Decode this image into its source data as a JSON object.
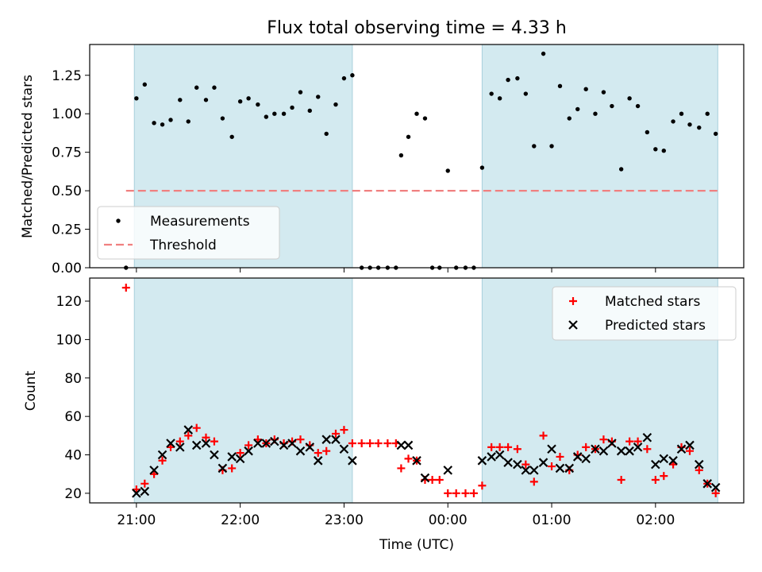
{
  "chart_data": {
    "title": "Flux total observing time = 4.33 h",
    "xlabel": "Time (UTC)",
    "x_ticks": [
      "21:00",
      "22:00",
      "23:00",
      "00:00",
      "01:00",
      "02:00"
    ],
    "x_range_hours": [
      20.55,
      26.85
    ],
    "shaded_spans_hours": [
      [
        20.98,
        23.08
      ],
      [
        24.33,
        26.6
      ]
    ],
    "shade_color": "#d3eaf0",
    "panels": [
      {
        "type": "scatter",
        "ylabel": "Matched/Predicted stars",
        "ylim": [
          0,
          1.45
        ],
        "yticks": [
          "0.00",
          "0.25",
          "0.50",
          "0.75",
          "1.00",
          "1.25"
        ],
        "legend_position": "lower-left",
        "series": [
          {
            "name": "Measurements",
            "marker": "dot",
            "color": "#000000",
            "points": [
              [
                20.9,
                0.0
              ],
              [
                21.0,
                1.1
              ],
              [
                21.08,
                1.19
              ],
              [
                21.17,
                0.94
              ],
              [
                21.25,
                0.93
              ],
              [
                21.33,
                0.96
              ],
              [
                21.42,
                1.09
              ],
              [
                21.5,
                0.95
              ],
              [
                21.58,
                1.17
              ],
              [
                21.67,
                1.09
              ],
              [
                21.75,
                1.17
              ],
              [
                21.83,
                0.97
              ],
              [
                21.92,
                0.85
              ],
              [
                22.0,
                1.08
              ],
              [
                22.08,
                1.1
              ],
              [
                22.17,
                1.06
              ],
              [
                22.25,
                0.98
              ],
              [
                22.33,
                1.0
              ],
              [
                22.42,
                1.0
              ],
              [
                22.5,
                1.04
              ],
              [
                22.58,
                1.14
              ],
              [
                22.67,
                1.02
              ],
              [
                22.75,
                1.11
              ],
              [
                22.83,
                0.87
              ],
              [
                22.92,
                1.06
              ],
              [
                23.0,
                1.23
              ],
              [
                23.08,
                1.25
              ],
              [
                23.17,
                0.0
              ],
              [
                23.25,
                0.0
              ],
              [
                23.33,
                0.0
              ],
              [
                23.42,
                0.0
              ],
              [
                23.5,
                0.0
              ],
              [
                23.55,
                0.73
              ],
              [
                23.62,
                0.85
              ],
              [
                23.7,
                1.0
              ],
              [
                23.78,
                0.97
              ],
              [
                23.85,
                0.0
              ],
              [
                23.92,
                0.0
              ],
              [
                24.0,
                0.63
              ],
              [
                24.08,
                0.0
              ],
              [
                24.17,
                0.0
              ],
              [
                24.25,
                0.0
              ],
              [
                24.33,
                0.65
              ],
              [
                24.42,
                1.13
              ],
              [
                24.5,
                1.1
              ],
              [
                24.58,
                1.22
              ],
              [
                24.67,
                1.23
              ],
              [
                24.75,
                1.13
              ],
              [
                24.83,
                0.79
              ],
              [
                24.92,
                1.39
              ],
              [
                25.0,
                0.79
              ],
              [
                25.08,
                1.18
              ],
              [
                25.17,
                0.97
              ],
              [
                25.25,
                1.03
              ],
              [
                25.33,
                1.16
              ],
              [
                25.42,
                1.0
              ],
              [
                25.5,
                1.14
              ],
              [
                25.58,
                1.05
              ],
              [
                25.67,
                0.64
              ],
              [
                25.75,
                1.1
              ],
              [
                25.83,
                1.05
              ],
              [
                25.92,
                0.88
              ],
              [
                26.0,
                0.77
              ],
              [
                26.08,
                0.76
              ],
              [
                26.17,
                0.95
              ],
              [
                26.25,
                1.0
              ],
              [
                26.33,
                0.93
              ],
              [
                26.42,
                0.91
              ],
              [
                26.5,
                1.0
              ],
              [
                26.58,
                0.87
              ]
            ]
          },
          {
            "name": "Threshold",
            "marker": "dashed-line",
            "color": "#f08080",
            "points": [
              [
                20.9,
                0.5
              ],
              [
                26.6,
                0.5
              ]
            ]
          }
        ]
      },
      {
        "type": "scatter",
        "ylabel": "Count",
        "ylim": [
          15,
          132
        ],
        "yticks": [
          "20",
          "40",
          "60",
          "80",
          "100",
          "120"
        ],
        "legend_position": "upper-right",
        "series": [
          {
            "name": "Matched stars",
            "marker": "plus",
            "color": "#ff0000",
            "points": [
              [
                20.9,
                127
              ],
              [
                21.0,
                22
              ],
              [
                21.08,
                25
              ],
              [
                21.17,
                30
              ],
              [
                21.25,
                37
              ],
              [
                21.33,
                44
              ],
              [
                21.42,
                47
              ],
              [
                21.5,
                50
              ],
              [
                21.58,
                54
              ],
              [
                21.67,
                49
              ],
              [
                21.75,
                47
              ],
              [
                21.83,
                32
              ],
              [
                21.92,
                33
              ],
              [
                22.0,
                41
              ],
              [
                22.08,
                45
              ],
              [
                22.17,
                48
              ],
              [
                22.25,
                46
              ],
              [
                22.33,
                48
              ],
              [
                22.42,
                46
              ],
              [
                22.5,
                47
              ],
              [
                22.58,
                48
              ],
              [
                22.67,
                45
              ],
              [
                22.75,
                41
              ],
              [
                22.83,
                42
              ],
              [
                22.92,
                51
              ],
              [
                23.0,
                53
              ],
              [
                23.08,
                46
              ],
              [
                23.17,
                46
              ],
              [
                23.25,
                46
              ],
              [
                23.33,
                46
              ],
              [
                23.42,
                46
              ],
              [
                23.5,
                46
              ],
              [
                23.55,
                33
              ],
              [
                23.62,
                38
              ],
              [
                23.7,
                37
              ],
              [
                23.78,
                27
              ],
              [
                23.85,
                27
              ],
              [
                23.92,
                27
              ],
              [
                24.0,
                20
              ],
              [
                24.08,
                20
              ],
              [
                24.17,
                20
              ],
              [
                24.25,
                20
              ],
              [
                24.33,
                24
              ],
              [
                24.42,
                44
              ],
              [
                24.5,
                44
              ],
              [
                24.58,
                44
              ],
              [
                24.67,
                43
              ],
              [
                24.75,
                35
              ],
              [
                24.83,
                26
              ],
              [
                24.92,
                50
              ],
              [
                25.0,
                34
              ],
              [
                25.08,
                39
              ],
              [
                25.17,
                32
              ],
              [
                25.25,
                40
              ],
              [
                25.33,
                44
              ],
              [
                25.42,
                43
              ],
              [
                25.5,
                48
              ],
              [
                25.58,
                47
              ],
              [
                25.67,
                27
              ],
              [
                25.75,
                47
              ],
              [
                25.83,
                47
              ],
              [
                25.92,
                43
              ],
              [
                26.0,
                27
              ],
              [
                26.08,
                29
              ],
              [
                26.17,
                35
              ],
              [
                26.25,
                44
              ],
              [
                26.33,
                42
              ],
              [
                26.42,
                32
              ],
              [
                26.5,
                25
              ],
              [
                26.58,
                20
              ]
            ]
          },
          {
            "name": "Predicted stars",
            "marker": "x",
            "color": "#000000",
            "points": [
              [
                21.0,
                20
              ],
              [
                21.08,
                21
              ],
              [
                21.17,
                32
              ],
              [
                21.25,
                40
              ],
              [
                21.33,
                46
              ],
              [
                21.42,
                44
              ],
              [
                21.5,
                53
              ],
              [
                21.58,
                45
              ],
              [
                21.67,
                46
              ],
              [
                21.75,
                40
              ],
              [
                21.83,
                33
              ],
              [
                21.92,
                39
              ],
              [
                22.0,
                38
              ],
              [
                22.08,
                42
              ],
              [
                22.17,
                46
              ],
              [
                22.25,
                46
              ],
              [
                22.33,
                47
              ],
              [
                22.42,
                45
              ],
              [
                22.5,
                46
              ],
              [
                22.58,
                42
              ],
              [
                22.67,
                44
              ],
              [
                22.75,
                37
              ],
              [
                22.83,
                48
              ],
              [
                22.92,
                48
              ],
              [
                23.0,
                43
              ],
              [
                23.08,
                37
              ],
              [
                23.55,
                45
              ],
              [
                23.62,
                45
              ],
              [
                23.7,
                37
              ],
              [
                23.78,
                28
              ],
              [
                24.0,
                32
              ],
              [
                24.33,
                37
              ],
              [
                24.42,
                39
              ],
              [
                24.5,
                40
              ],
              [
                24.58,
                36
              ],
              [
                24.67,
                35
              ],
              [
                24.75,
                32
              ],
              [
                24.83,
                32
              ],
              [
                24.92,
                36
              ],
              [
                25.0,
                43
              ],
              [
                25.08,
                33
              ],
              [
                25.17,
                33
              ],
              [
                25.25,
                39
              ],
              [
                25.33,
                38
              ],
              [
                25.42,
                43
              ],
              [
                25.5,
                42
              ],
              [
                25.58,
                46
              ],
              [
                25.67,
                42
              ],
              [
                25.75,
                42
              ],
              [
                25.83,
                44
              ],
              [
                25.92,
                49
              ],
              [
                26.0,
                35
              ],
              [
                26.08,
                38
              ],
              [
                26.17,
                37
              ],
              [
                26.25,
                43
              ],
              [
                26.33,
                45
              ],
              [
                26.42,
                35
              ],
              [
                26.5,
                25
              ],
              [
                26.58,
                23
              ]
            ]
          }
        ]
      }
    ]
  }
}
